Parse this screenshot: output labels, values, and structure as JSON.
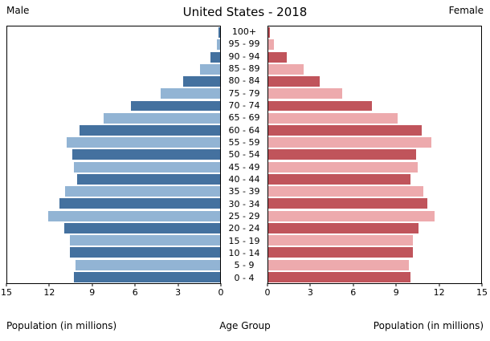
{
  "title": "United States - 2018",
  "left_header": "Male",
  "right_header": "Female",
  "footer": {
    "left_label": "Population (in millions)",
    "center_label": "Age Group",
    "right_label": "Population (in millions)"
  },
  "axis": {
    "max": 15,
    "ticks_left": [
      15,
      12,
      9,
      6,
      3,
      0
    ],
    "ticks_right": [
      0,
      3,
      6,
      9,
      12,
      15
    ]
  },
  "colors": {
    "male_dark": "#44719f",
    "male_light": "#92b4d4",
    "female_dark": "#c0545b",
    "female_light": "#edaaad",
    "panel_border": "#000000"
  },
  "chart_data": {
    "type": "bar",
    "title": "United States - 2018",
    "orientation": "horizontal-pyramid",
    "xlabel": "Population (in millions)",
    "ylabel": "Age Group",
    "xlim": [
      0,
      15
    ],
    "grid": false,
    "legend_position": "none",
    "categories": [
      "100+",
      "95 - 99",
      "90 - 94",
      "85 - 89",
      "80 - 84",
      "75 - 79",
      "70 - 74",
      "65 - 69",
      "60 - 64",
      "55 - 59",
      "50 - 54",
      "45 - 49",
      "40 - 44",
      "35 - 39",
      "30 - 34",
      "25 - 29",
      "20 - 24",
      "15 - 19",
      "10 - 14",
      "5 - 9",
      "0 - 4"
    ],
    "series": [
      {
        "name": "Male",
        "values": [
          0.1,
          0.2,
          0.7,
          1.4,
          2.6,
          4.2,
          6.3,
          8.2,
          9.9,
          10.8,
          10.4,
          10.3,
          10.1,
          10.9,
          11.3,
          12.1,
          11.0,
          10.6,
          10.6,
          10.2,
          10.3
        ]
      },
      {
        "name": "Female",
        "values": [
          0.1,
          0.4,
          1.3,
          2.5,
          3.6,
          5.2,
          7.3,
          9.1,
          10.8,
          11.5,
          10.4,
          10.5,
          10.0,
          10.9,
          11.2,
          11.7,
          10.6,
          10.2,
          10.2,
          9.9,
          10.0
        ]
      }
    ]
  }
}
